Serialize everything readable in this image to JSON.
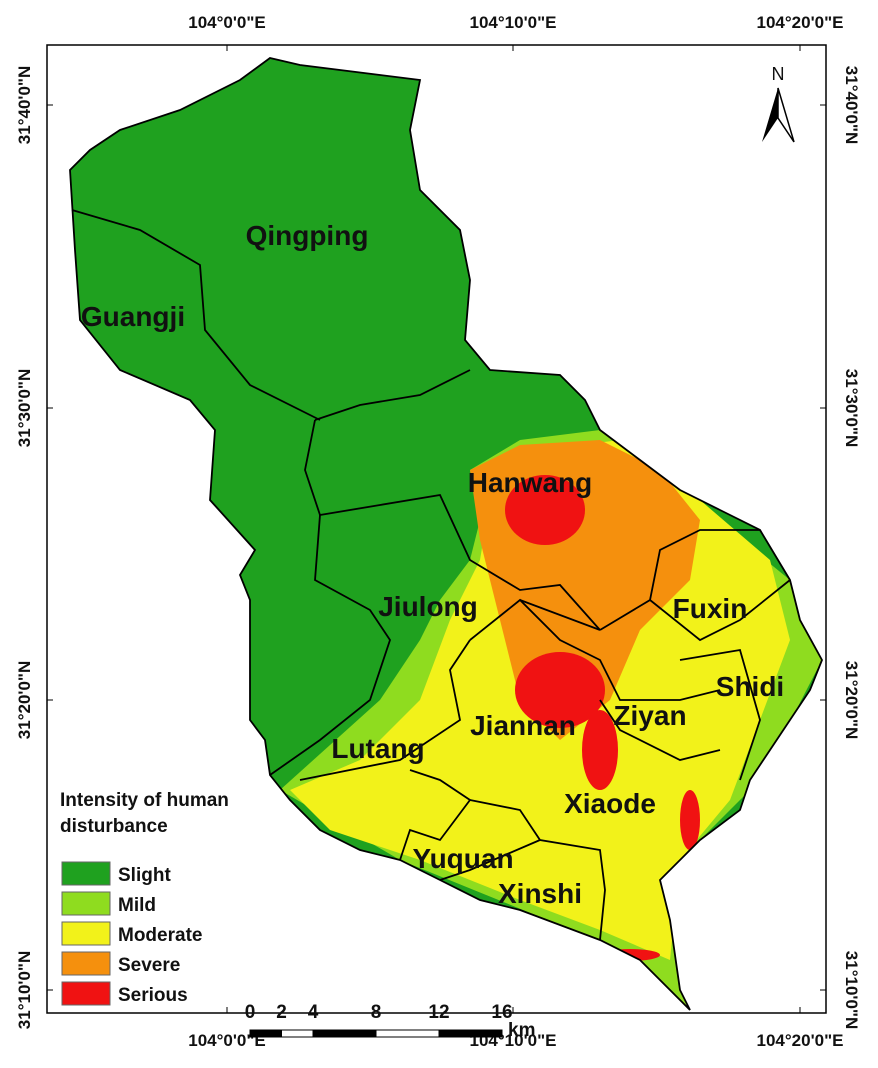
{
  "map": {
    "north_label": "N",
    "graticule": {
      "top": [
        "104°0'0\"E",
        "104°10'0\"E",
        "104°20'0\"E"
      ],
      "bottom": [
        "104°0'0\"E",
        "104°10'0\"E",
        "104°20'0\"E"
      ],
      "left": [
        "31°40'0\"N",
        "31°30'0\"N",
        "31°20'0\"N",
        "31°10'0\"N"
      ],
      "right": [
        "31°40'0\"N",
        "31°30'0\"N",
        "31°20'0\"N",
        "31°10'0\"N"
      ]
    },
    "regions": [
      "Qingping",
      "Guangji",
      "Hanwang",
      "Jiulong",
      "Fuxin",
      "Shidi",
      "Ziyan",
      "Jiannan",
      "Lutang",
      "Xiaode",
      "Yuquan",
      "Xinshi"
    ],
    "legend": {
      "title_lines": [
        "Intensity of human",
        "disturbance"
      ],
      "items": [
        {
          "label": "Slight",
          "color": "#1fa11f"
        },
        {
          "label": "Mild",
          "color": "#8fdc1f"
        },
        {
          "label": "Moderate",
          "color": "#f2f21a"
        },
        {
          "label": "Severe",
          "color": "#f5900d"
        },
        {
          "label": "Serious",
          "color": "#f01212"
        }
      ]
    },
    "scale_bar": {
      "ticks": [
        0,
        2,
        4,
        8,
        12,
        16
      ],
      "unit": "km"
    }
  }
}
